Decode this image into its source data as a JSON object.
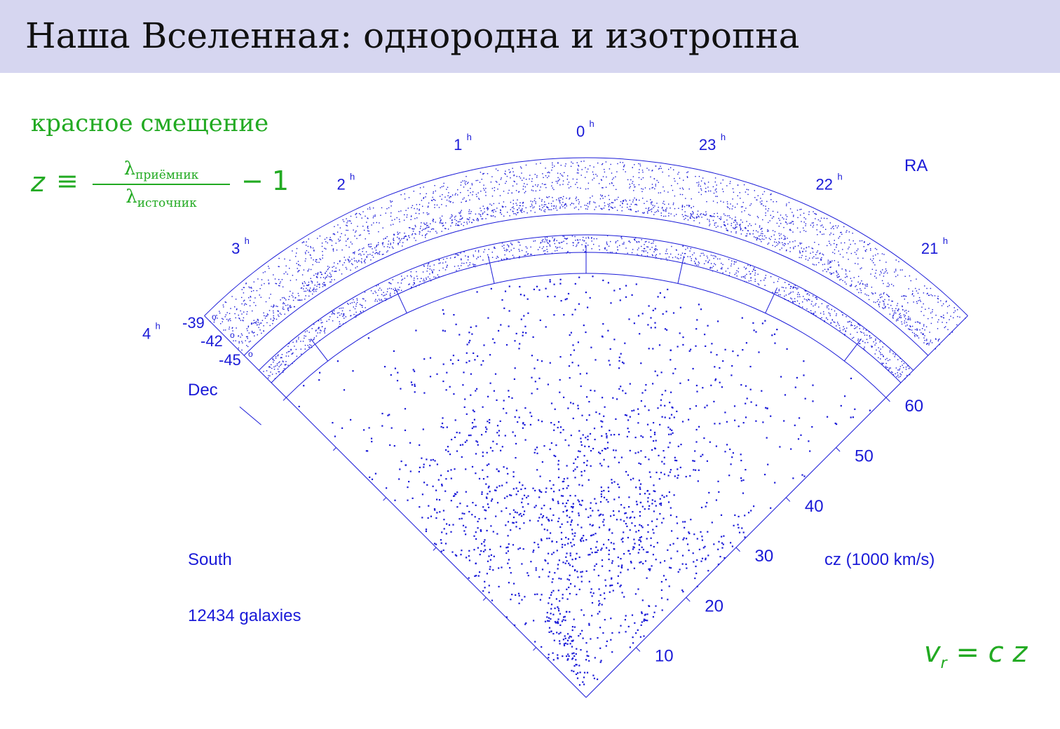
{
  "slide": {
    "title": "Наша Вселенная: однородна и изотропна",
    "subtitle": "красное смещение",
    "formula": {
      "lhs": "z",
      "relation": "≡",
      "lambda": "λ",
      "numerator_sub": "приёмник",
      "denominator_sub": "источник",
      "tail": "− 1"
    },
    "velocity_formula": {
      "lhs": "v",
      "lhs_sub": "r",
      "rhs": "= c z"
    }
  },
  "colors": {
    "header_bg": "#d6d6f0",
    "accent_green": "#22aa22",
    "chart_blue": "#1a1ad8"
  },
  "chart_data": {
    "type": "scatter",
    "projection": "polar-wedge (redshift cone diagram)",
    "hemisphere_label": "South",
    "galaxy_count_label": "12434 galaxies",
    "radial_axis": {
      "label": "cz (1000 km/s)",
      "ticks": [
        "10",
        "20",
        "30",
        "40",
        "50",
        "60"
      ],
      "tick_values": [
        10,
        20,
        30,
        40,
        50,
        60
      ],
      "range": [
        0,
        60
      ]
    },
    "angular_axis": {
      "label": "RA",
      "ticks": [
        {
          "text": "4",
          "unit": "h",
          "value": 4
        },
        {
          "text": "3",
          "unit": "h",
          "value": 3
        },
        {
          "text": "2",
          "unit": "h",
          "value": 2
        },
        {
          "text": "1",
          "unit": "h",
          "value": 1
        },
        {
          "text": "0",
          "unit": "h",
          "value": 0
        },
        {
          "text": "23",
          "unit": "h",
          "value": 23
        },
        {
          "text": "22",
          "unit": "h",
          "value": 22
        },
        {
          "text": "21",
          "unit": "h",
          "value": 21
        }
      ],
      "range_hours": [
        21,
        4.5
      ]
    },
    "declination_strips": {
      "label": "Dec",
      "values": [
        {
          "text": "-39",
          "unit": "o"
        },
        {
          "text": "-42",
          "unit": "o"
        },
        {
          "text": "-45",
          "unit": "o"
        }
      ]
    },
    "points": {
      "color": "#1a1ad8",
      "note": "galaxy positions rendered as a procedural scatter; structure denser toward cz 15-40"
    }
  }
}
